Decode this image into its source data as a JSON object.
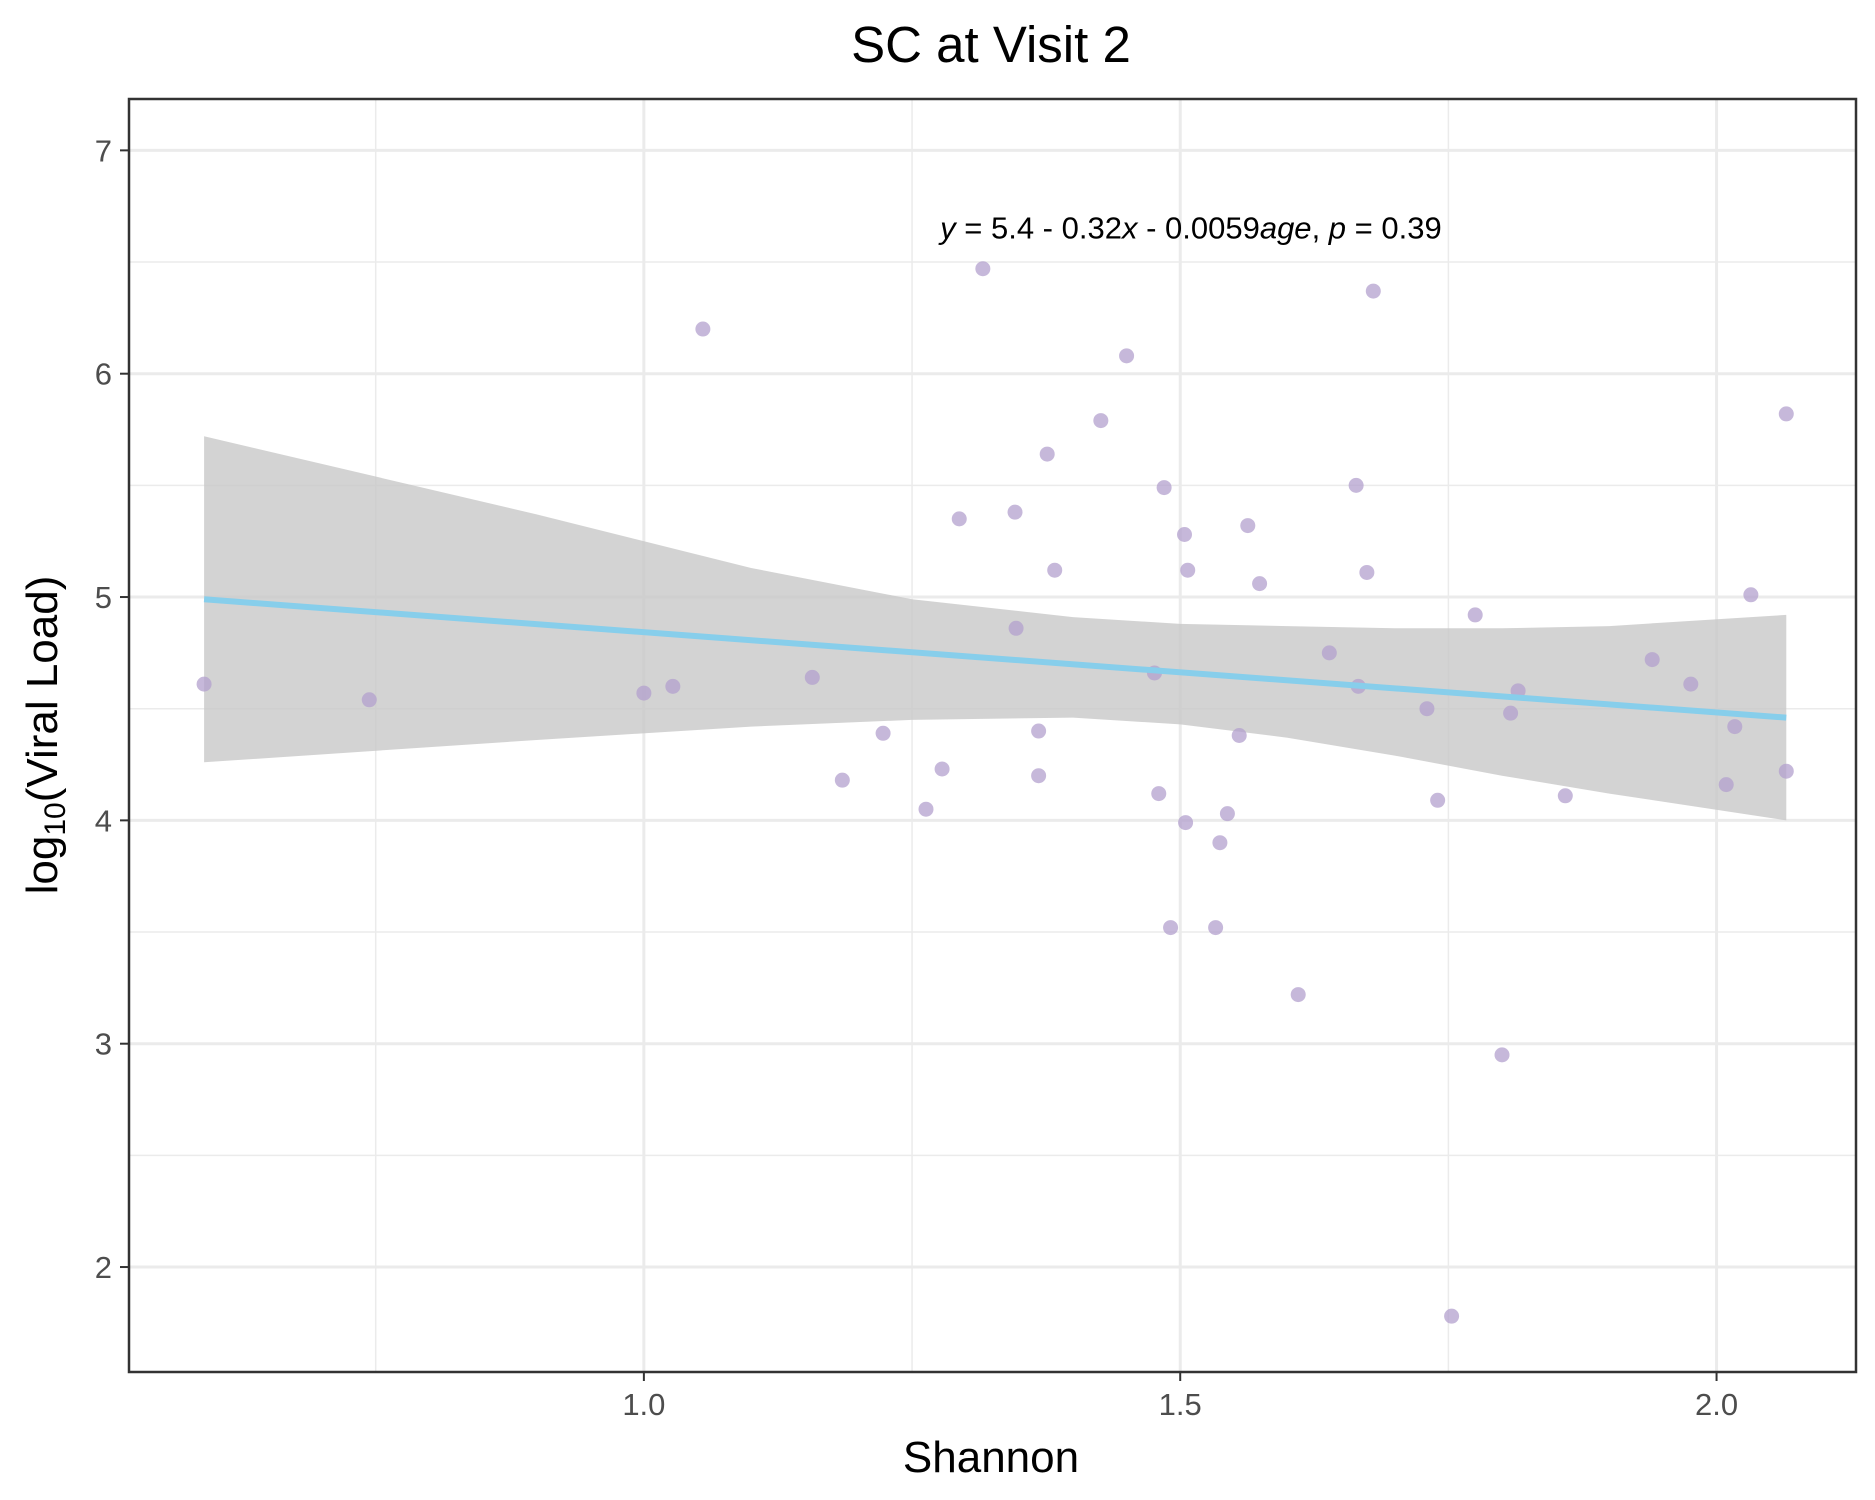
{
  "chart_data": {
    "type": "scatter",
    "title": "SC at Visit 2",
    "xlabel": "Shannon",
    "ylabel": {
      "prefix": "log",
      "subscript": "10",
      "suffix": "(Viral Load)"
    },
    "xlim": [
      0.52,
      2.13
    ],
    "ylim": [
      1.53,
      7.23
    ],
    "x_ticks": [
      1.0,
      1.5,
      2.0
    ],
    "x_tick_labels": [
      "1.0",
      "1.5",
      "2.0"
    ],
    "x_minor_ticks": [
      0.75,
      1.25,
      1.75
    ],
    "y_ticks": [
      2,
      3,
      4,
      5,
      6,
      7
    ],
    "y_tick_labels": [
      "2",
      "3",
      "4",
      "5",
      "6",
      "7"
    ],
    "y_minor_ticks": [
      2.5,
      3.5,
      4.5,
      5.5,
      6.5
    ],
    "grid": true,
    "annotation": {
      "y_var": "y",
      "eq": " = 5.4 - 0.32",
      "x_var": "x",
      "mid": " - 0.0059",
      "age_var": "age",
      "sep": ", ",
      "p_var": "p",
      "p_val": " = 0.39",
      "x": 1.51,
      "y": 6.65
    },
    "colors": {
      "points": "#b3a0cd",
      "fit_line": "#87ceeb",
      "band": "#c8c8c8"
    },
    "points": [
      {
        "x": 0.59,
        "y": 4.61
      },
      {
        "x": 0.744,
        "y": 4.54
      },
      {
        "x": 1.0,
        "y": 4.57
      },
      {
        "x": 1.027,
        "y": 4.6
      },
      {
        "x": 1.055,
        "y": 6.2
      },
      {
        "x": 1.157,
        "y": 4.64
      },
      {
        "x": 1.185,
        "y": 4.18
      },
      {
        "x": 1.223,
        "y": 4.39
      },
      {
        "x": 1.263,
        "y": 4.05
      },
      {
        "x": 1.278,
        "y": 4.23
      },
      {
        "x": 1.294,
        "y": 5.35
      },
      {
        "x": 1.316,
        "y": 6.47
      },
      {
        "x": 1.346,
        "y": 5.38
      },
      {
        "x": 1.347,
        "y": 4.86
      },
      {
        "x": 1.368,
        "y": 4.4
      },
      {
        "x": 1.368,
        "y": 4.2
      },
      {
        "x": 1.376,
        "y": 5.64
      },
      {
        "x": 1.383,
        "y": 5.12
      },
      {
        "x": 1.426,
        "y": 5.79
      },
      {
        "x": 1.45,
        "y": 6.08
      },
      {
        "x": 1.476,
        "y": 4.66
      },
      {
        "x": 1.48,
        "y": 4.12
      },
      {
        "x": 1.485,
        "y": 5.49
      },
      {
        "x": 1.491,
        "y": 3.52
      },
      {
        "x": 1.504,
        "y": 5.28
      },
      {
        "x": 1.505,
        "y": 3.99
      },
      {
        "x": 1.507,
        "y": 5.12
      },
      {
        "x": 1.533,
        "y": 3.52
      },
      {
        "x": 1.537,
        "y": 3.9
      },
      {
        "x": 1.544,
        "y": 4.03
      },
      {
        "x": 1.555,
        "y": 4.38
      },
      {
        "x": 1.563,
        "y": 5.32
      },
      {
        "x": 1.574,
        "y": 5.06
      },
      {
        "x": 1.61,
        "y": 3.22
      },
      {
        "x": 1.639,
        "y": 4.75
      },
      {
        "x": 1.664,
        "y": 5.5
      },
      {
        "x": 1.666,
        "y": 4.6
      },
      {
        "x": 1.674,
        "y": 5.11
      },
      {
        "x": 1.68,
        "y": 6.37
      },
      {
        "x": 1.73,
        "y": 4.5
      },
      {
        "x": 1.74,
        "y": 4.09
      },
      {
        "x": 1.753,
        "y": 1.78
      },
      {
        "x": 1.775,
        "y": 4.92
      },
      {
        "x": 1.8,
        "y": 2.95
      },
      {
        "x": 1.808,
        "y": 4.48
      },
      {
        "x": 1.815,
        "y": 4.58
      },
      {
        "x": 1.859,
        "y": 4.11
      },
      {
        "x": 1.94,
        "y": 4.72
      },
      {
        "x": 1.976,
        "y": 4.61
      },
      {
        "x": 2.009,
        "y": 4.16
      },
      {
        "x": 2.017,
        "y": 4.42
      },
      {
        "x": 2.032,
        "y": 5.01
      },
      {
        "x": 2.065,
        "y": 5.82
      },
      {
        "x": 2.065,
        "y": 4.22
      }
    ],
    "fit_line": [
      {
        "x": 0.59,
        "y": 4.99
      },
      {
        "x": 2.065,
        "y": 4.46
      }
    ],
    "band": [
      {
        "x": 0.59,
        "lo": 4.26,
        "hi": 5.72
      },
      {
        "x": 0.9,
        "lo": 4.36,
        "hi": 5.37
      },
      {
        "x": 1.1,
        "lo": 4.42,
        "hi": 5.13
      },
      {
        "x": 1.25,
        "lo": 4.45,
        "hi": 4.99
      },
      {
        "x": 1.4,
        "lo": 4.46,
        "hi": 4.91
      },
      {
        "x": 1.5,
        "lo": 4.43,
        "hi": 4.88
      },
      {
        "x": 1.6,
        "lo": 4.37,
        "hi": 4.87
      },
      {
        "x": 1.7,
        "lo": 4.29,
        "hi": 4.86
      },
      {
        "x": 1.8,
        "lo": 4.2,
        "hi": 4.86
      },
      {
        "x": 1.9,
        "lo": 4.12,
        "hi": 4.87
      },
      {
        "x": 2.065,
        "lo": 4.0,
        "hi": 4.92
      }
    ]
  }
}
